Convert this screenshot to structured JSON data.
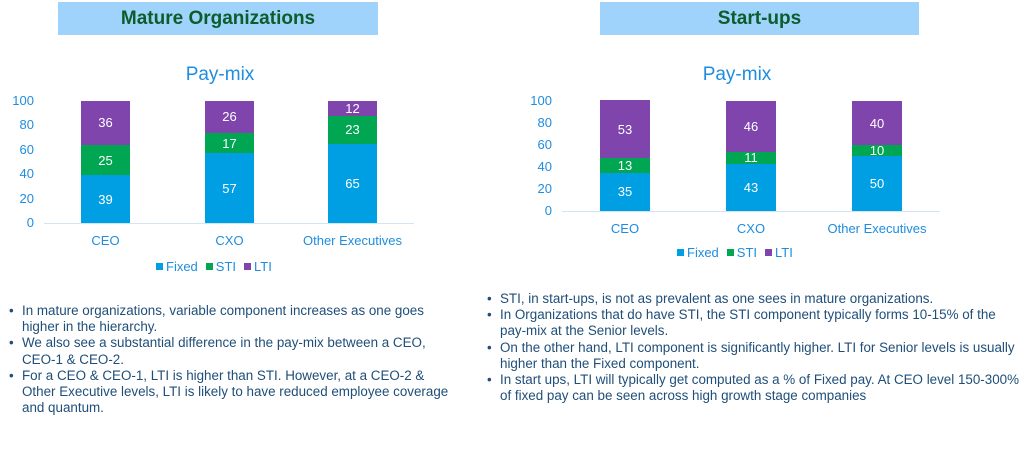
{
  "left": {
    "header": "Mature Organizations",
    "chart_title": "Pay-mix",
    "notes": [
      "In mature organizations, variable component increases as one goes higher in the hierarchy.",
      "We also see a substantial difference in the pay-mix between a CEO, CEO-1 & CEO-2.",
      "For a CEO & CEO-1, LTI is higher than STI. However, at a CEO-2 & Other Executive levels, LTI is likely to have reduced employee coverage and quantum."
    ]
  },
  "right": {
    "header": "Start-ups",
    "chart_title": "Pay-mix",
    "notes": [
      "STI, in start-ups, is not as prevalent as one sees in mature organizations.",
      "In Organizations that do have STI, the STI component typically forms 10-15% of the pay-mix at the Senior levels.",
      "On the other hand, LTI component is significantly higher.  LTI for Senior levels is usually higher than the Fixed component.",
      "In start ups, LTI will typically get computed as a % of Fixed pay. At CEO level 150-300% of fixed pay can be seen across high growth stage companies"
    ]
  },
  "legend": [
    {
      "label": "Fixed",
      "color": "#009fe3"
    },
    {
      "label": "STI",
      "color": "#00a651"
    },
    {
      "label": "LTI",
      "color": "#7f45ad"
    }
  ],
  "y_ticks": [
    "100",
    "80",
    "60",
    "40",
    "20",
    "0"
  ],
  "categories": [
    "CEO",
    "CXO",
    "Other Executives"
  ],
  "colors": {
    "header_bg": "#9fd3fb",
    "header_text": "#0c5d2c",
    "axis_text": "#1e8de0",
    "note_text": "#1f4e79"
  },
  "chart_data": [
    {
      "type": "bar",
      "stacked": true,
      "title": "Pay-mix",
      "panel": "Mature Organizations",
      "categories": [
        "CEO",
        "CXO",
        "Other Executives"
      ],
      "series": [
        {
          "name": "Fixed",
          "values": [
            39,
            57,
            65
          ],
          "color": "#009fe3"
        },
        {
          "name": "STI",
          "values": [
            25,
            17,
            23
          ],
          "color": "#00a651"
        },
        {
          "name": "LTI",
          "values": [
            36,
            26,
            12
          ],
          "color": "#7f45ad"
        }
      ],
      "xlabel": "",
      "ylabel": "",
      "ylim": [
        0,
        100
      ],
      "yticks": [
        0,
        20,
        40,
        60,
        80,
        100
      ],
      "grid": false,
      "legend_position": "bottom"
    },
    {
      "type": "bar",
      "stacked": true,
      "title": "Pay-mix",
      "panel": "Start-ups",
      "categories": [
        "CEO",
        "CXO",
        "Other Executives"
      ],
      "series": [
        {
          "name": "Fixed",
          "values": [
            35,
            43,
            50
          ],
          "color": "#009fe3"
        },
        {
          "name": "STI",
          "values": [
            13,
            11,
            10
          ],
          "color": "#00a651"
        },
        {
          "name": "LTI",
          "values": [
            53,
            46,
            40
          ],
          "color": "#7f45ad"
        }
      ],
      "xlabel": "",
      "ylabel": "",
      "ylim": [
        0,
        100
      ],
      "yticks": [
        0,
        20,
        40,
        60,
        80,
        100
      ],
      "grid": false,
      "legend_position": "bottom"
    }
  ]
}
